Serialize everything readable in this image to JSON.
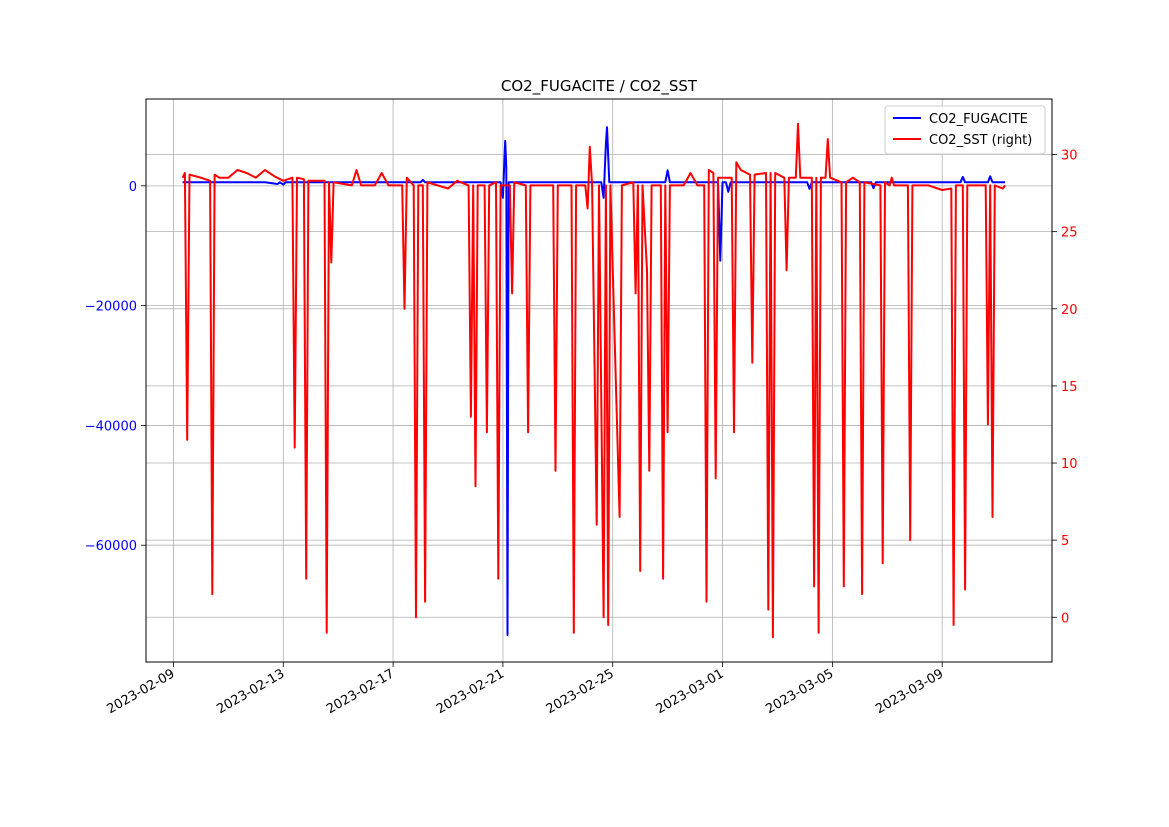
{
  "chart_data": {
    "type": "line",
    "title": "CO2_FUGACITE / CO2_SST",
    "xlabel": "",
    "ylabel": "",
    "y2label": "",
    "grid": true,
    "legend_position": "upper-right",
    "xlim": [
      "2023-02-08",
      "2023-03-13"
    ],
    "ylim_left": [
      -79500,
      14500
    ],
    "ylim_right": [
      -2.9,
      33.6
    ],
    "x_ticks": [
      "2023-02-09",
      "2023-02-13",
      "2023-02-17",
      "2023-02-21",
      "2023-02-25",
      "2023-03-01",
      "2023-03-05",
      "2023-03-09"
    ],
    "y_left_ticks": [
      0,
      -20000,
      -40000,
      -60000
    ],
    "y_left_tick_labels": [
      "0",
      "−20000",
      "−40000",
      "−60000"
    ],
    "y_right_ticks": [
      30,
      25,
      20,
      15,
      10,
      5,
      0
    ],
    "series": [
      {
        "name": "CO2_FUGACITE",
        "axis": "left",
        "color": "#0000ff",
        "points": [
          [
            "2023-02-09 08:00",
            600
          ],
          [
            "2023-02-12 08:00",
            600
          ],
          [
            "2023-02-12 19:00",
            300
          ],
          [
            "2023-02-12 21:00",
            600
          ],
          [
            "2023-02-13 00:00",
            200
          ],
          [
            "2023-02-13 02:00",
            600
          ],
          [
            "2023-02-18 00:00",
            600
          ],
          [
            "2023-02-18 02:00",
            1000
          ],
          [
            "2023-02-18 04:00",
            600
          ],
          [
            "2023-02-20 22:00",
            600
          ],
          [
            "2023-02-21 00:00",
            -2000
          ],
          [
            "2023-02-21 02:00",
            7500
          ],
          [
            "2023-02-21 03:00",
            3000
          ],
          [
            "2023-02-21 04:00",
            -75000
          ],
          [
            "2023-02-21 05:00",
            600
          ],
          [
            "2023-02-24 14:00",
            600
          ],
          [
            "2023-02-24 16:00",
            -2000
          ],
          [
            "2023-02-24 18:00",
            7000
          ],
          [
            "2023-02-24 19:00",
            9800
          ],
          [
            "2023-02-24 21:00",
            600
          ],
          [
            "2023-02-26 22:00",
            600
          ],
          [
            "2023-02-27 00:00",
            2600
          ],
          [
            "2023-02-27 02:00",
            600
          ],
          [
            "2023-02-28 20:00",
            600
          ],
          [
            "2023-02-28 22:00",
            -12500
          ],
          [
            "2023-03-01 00:00",
            600
          ],
          [
            "2023-03-01 03:00",
            600
          ],
          [
            "2023-03-01 05:00",
            -1000
          ],
          [
            "2023-03-01 07:00",
            600
          ],
          [
            "2023-03-04 02:00",
            600
          ],
          [
            "2023-03-04 04:00",
            -500
          ],
          [
            "2023-03-04 06:00",
            600
          ],
          [
            "2023-03-06 10:00",
            600
          ],
          [
            "2023-03-06 12:00",
            -400
          ],
          [
            "2023-03-06 14:00",
            600
          ],
          [
            "2023-03-09 16:00",
            600
          ],
          [
            "2023-03-09 18:00",
            1500
          ],
          [
            "2023-03-09 20:00",
            600
          ],
          [
            "2023-03-10 16:00",
            600
          ],
          [
            "2023-03-10 18:00",
            1600
          ],
          [
            "2023-03-10 20:00",
            600
          ],
          [
            "2023-03-11 07:00",
            600
          ]
        ]
      },
      {
        "name": "CO2_SST (right)",
        "axis": "right",
        "color": "#ff0000",
        "points": [
          [
            "2023-02-09 08:00",
            28.5
          ],
          [
            "2023-02-09 10:00",
            28.8
          ],
          [
            "2023-02-09 12:00",
            11.5
          ],
          [
            "2023-02-09 14:00",
            28.7
          ],
          [
            "2023-02-10 00:00",
            28.5
          ],
          [
            "2023-02-10 08:00",
            28.3
          ],
          [
            "2023-02-10 10:00",
            1.5
          ],
          [
            "2023-02-10 12:00",
            28.7
          ],
          [
            "2023-02-10 16:00",
            28.5
          ],
          [
            "2023-02-11 00:00",
            28.5
          ],
          [
            "2023-02-11 08:00",
            29.0
          ],
          [
            "2023-02-11 16:00",
            28.8
          ],
          [
            "2023-02-12 00:00",
            28.5
          ],
          [
            "2023-02-12 08:00",
            29.0
          ],
          [
            "2023-02-12 16:00",
            28.6
          ],
          [
            "2023-02-13 00:00",
            28.3
          ],
          [
            "2023-02-13 08:00",
            28.5
          ],
          [
            "2023-02-13 10:00",
            11.0
          ],
          [
            "2023-02-13 12:00",
            28.5
          ],
          [
            "2023-02-13 18:00",
            28.4
          ],
          [
            "2023-02-13 20:00",
            2.5
          ],
          [
            "2023-02-13 22:00",
            28.3
          ],
          [
            "2023-02-14 12:00",
            28.3
          ],
          [
            "2023-02-14 14:00",
            -1.0
          ],
          [
            "2023-02-14 16:00",
            28.2
          ],
          [
            "2023-02-14 18:00",
            23.0
          ],
          [
            "2023-02-14 20:00",
            28.2
          ],
          [
            "2023-02-15 12:00",
            28.0
          ],
          [
            "2023-02-15 16:00",
            29.0
          ],
          [
            "2023-02-15 20:00",
            28.0
          ],
          [
            "2023-02-16 08:00",
            28.0
          ],
          [
            "2023-02-16 14:00",
            28.8
          ],
          [
            "2023-02-16 20:00",
            28.0
          ],
          [
            "2023-02-17 08:00",
            28.0
          ],
          [
            "2023-02-17 10:00",
            20.0
          ],
          [
            "2023-02-17 12:00",
            28.5
          ],
          [
            "2023-02-17 18:00",
            28.0
          ],
          [
            "2023-02-17 20:00",
            0.0
          ],
          [
            "2023-02-17 22:00",
            28.0
          ],
          [
            "2023-02-18 02:00",
            28.0
          ],
          [
            "2023-02-18 04:00",
            1.0
          ],
          [
            "2023-02-18 06:00",
            28.2
          ],
          [
            "2023-02-19 00:00",
            27.8
          ],
          [
            "2023-02-19 08:00",
            28.3
          ],
          [
            "2023-02-19 18:00",
            28.0
          ],
          [
            "2023-02-19 20:00",
            13.0
          ],
          [
            "2023-02-19 22:00",
            28.0
          ],
          [
            "2023-02-20 00:00",
            8.5
          ],
          [
            "2023-02-20 02:00",
            28.0
          ],
          [
            "2023-02-20 08:00",
            28.0
          ],
          [
            "2023-02-20 10:00",
            12.0
          ],
          [
            "2023-02-20 12:00",
            28.0
          ],
          [
            "2023-02-20 18:00",
            28.2
          ],
          [
            "2023-02-20 20:00",
            2.5
          ],
          [
            "2023-02-20 22:00",
            28.0
          ],
          [
            "2023-02-21 06:00",
            28.0
          ],
          [
            "2023-02-21 08:00",
            21.0
          ],
          [
            "2023-02-21 10:00",
            28.2
          ],
          [
            "2023-02-21 20:00",
            28.0
          ],
          [
            "2023-02-21 22:00",
            12.0
          ],
          [
            "2023-02-22 00:00",
            28.0
          ],
          [
            "2023-02-22 20:00",
            28.0
          ],
          [
            "2023-02-22 22:00",
            9.5
          ],
          [
            "2023-02-23 00:00",
            28.0
          ],
          [
            "2023-02-23 12:00",
            28.0
          ],
          [
            "2023-02-23 14:00",
            -1.0
          ],
          [
            "2023-02-23 16:00",
            28.0
          ],
          [
            "2023-02-24 00:00",
            28.0
          ],
          [
            "2023-02-24 02:00",
            26.5
          ],
          [
            "2023-02-24 04:00",
            30.5
          ],
          [
            "2023-02-24 06:00",
            28.0
          ],
          [
            "2023-02-24 10:00",
            6.0
          ],
          [
            "2023-02-24 12:00",
            28.0
          ],
          [
            "2023-02-24 16:00",
            0.0
          ],
          [
            "2023-02-24 18:00",
            28.0
          ],
          [
            "2023-02-24 20:00",
            -0.5
          ],
          [
            "2023-02-24 22:00",
            28.0
          ],
          [
            "2023-02-25 06:00",
            6.5
          ],
          [
            "2023-02-25 08:00",
            28.0
          ],
          [
            "2023-02-25 18:00",
            28.2
          ],
          [
            "2023-02-25 20:00",
            21.0
          ],
          [
            "2023-02-25 22:00",
            28.0
          ],
          [
            "2023-02-26 00:00",
            3.0
          ],
          [
            "2023-02-26 02:00",
            28.0
          ],
          [
            "2023-02-26 06:00",
            22.5
          ],
          [
            "2023-02-26 08:00",
            9.5
          ],
          [
            "2023-02-26 10:00",
            28.0
          ],
          [
            "2023-02-26 18:00",
            28.0
          ],
          [
            "2023-02-26 20:00",
            2.5
          ],
          [
            "2023-02-26 22:00",
            28.0
          ],
          [
            "2023-02-27 00:00",
            12.0
          ],
          [
            "2023-02-27 02:00",
            28.0
          ],
          [
            "2023-02-27 14:00",
            28.0
          ],
          [
            "2023-02-27 20:00",
            28.8
          ],
          [
            "2023-02-28 02:00",
            28.0
          ],
          [
            "2023-02-28 08:00",
            28.0
          ],
          [
            "2023-02-28 10:00",
            1.0
          ],
          [
            "2023-02-28 12:00",
            29.0
          ],
          [
            "2023-02-28 16:00",
            28.8
          ],
          [
            "2023-02-28 18:00",
            9.0
          ],
          [
            "2023-02-28 20:00",
            28.5
          ],
          [
            "2023-03-01 08:00",
            28.5
          ],
          [
            "2023-03-01 10:00",
            12.0
          ],
          [
            "2023-03-01 12:00",
            29.5
          ],
          [
            "2023-03-01 16:00",
            29.0
          ],
          [
            "2023-03-02 00:00",
            28.7
          ],
          [
            "2023-03-02 02:00",
            16.5
          ],
          [
            "2023-03-02 04:00",
            28.7
          ],
          [
            "2023-03-02 14:00",
            28.8
          ],
          [
            "2023-03-02 16:00",
            0.5
          ],
          [
            "2023-03-02 18:00",
            28.8
          ],
          [
            "2023-03-02 20:00",
            -1.3
          ],
          [
            "2023-03-02 22:00",
            28.8
          ],
          [
            "2023-03-03 06:00",
            28.5
          ],
          [
            "2023-03-03 08:00",
            22.5
          ],
          [
            "2023-03-03 10:00",
            28.5
          ],
          [
            "2023-03-03 16:00",
            28.5
          ],
          [
            "2023-03-03 18:00",
            32.0
          ],
          [
            "2023-03-03 20:00",
            28.5
          ],
          [
            "2023-03-04 06:00",
            28.5
          ],
          [
            "2023-03-04 08:00",
            2.0
          ],
          [
            "2023-03-04 10:00",
            28.5
          ],
          [
            "2023-03-04 12:00",
            -1.0
          ],
          [
            "2023-03-04 14:00",
            28.5
          ],
          [
            "2023-03-04 18:00",
            28.5
          ],
          [
            "2023-03-04 20:00",
            31.0
          ],
          [
            "2023-03-04 22:00",
            28.5
          ],
          [
            "2023-03-05 08:00",
            28.2
          ],
          [
            "2023-03-05 10:00",
            2.0
          ],
          [
            "2023-03-05 12:00",
            28.2
          ],
          [
            "2023-03-05 18:00",
            28.5
          ],
          [
            "2023-03-06 00:00",
            28.2
          ],
          [
            "2023-03-06 02:00",
            1.5
          ],
          [
            "2023-03-06 04:00",
            28.2
          ],
          [
            "2023-03-06 18:00",
            28.0
          ],
          [
            "2023-03-06 20:00",
            3.5
          ],
          [
            "2023-03-06 22:00",
            28.2
          ],
          [
            "2023-03-07 02:00",
            28.0
          ],
          [
            "2023-03-07 04:00",
            28.5
          ],
          [
            "2023-03-07 06:00",
            28.0
          ],
          [
            "2023-03-07 18:00",
            28.0
          ],
          [
            "2023-03-07 20:00",
            5.0
          ],
          [
            "2023-03-07 22:00",
            28.0
          ],
          [
            "2023-03-08 12:00",
            28.0
          ],
          [
            "2023-03-09 00:00",
            27.7
          ],
          [
            "2023-03-09 08:00",
            27.8
          ],
          [
            "2023-03-09 10:00",
            -0.5
          ],
          [
            "2023-03-09 12:00",
            28.0
          ],
          [
            "2023-03-09 18:00",
            28.0
          ],
          [
            "2023-03-09 20:00",
            1.8
          ],
          [
            "2023-03-09 22:00",
            28.0
          ],
          [
            "2023-03-10 14:00",
            28.0
          ],
          [
            "2023-03-10 16:00",
            12.5
          ],
          [
            "2023-03-10 18:00",
            28.0
          ],
          [
            "2023-03-10 20:00",
            6.5
          ],
          [
            "2023-03-10 22:00",
            28.0
          ],
          [
            "2023-03-11 05:00",
            27.8
          ],
          [
            "2023-03-11 07:00",
            28.0
          ]
        ]
      }
    ]
  }
}
